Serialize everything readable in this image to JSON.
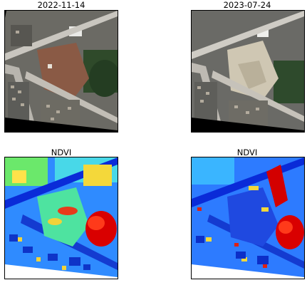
{
  "figure": {
    "panels": [
      {
        "title": "2022-11-14",
        "kind": "satellite-rgb"
      },
      {
        "title": "2023-07-24",
        "kind": "satellite-rgb"
      },
      {
        "title": "NDVI",
        "kind": "ndvi-map"
      },
      {
        "title": "NDVI",
        "kind": "ndvi-map"
      }
    ]
  },
  "colors": {
    "background": "#ffffff",
    "ndvi_low": "#0a2bd8",
    "ndvi_mid": "#37e0ff",
    "ndvi_green": "#46e36b",
    "ndvi_high": "#d90000"
  }
}
